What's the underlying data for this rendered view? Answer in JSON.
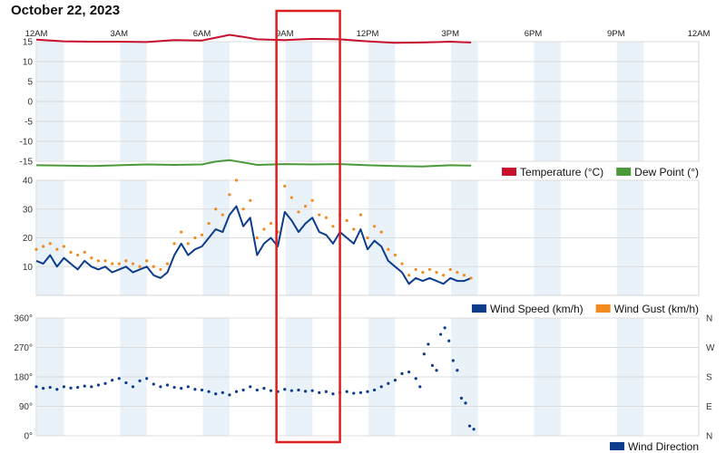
{
  "page": {
    "title": "October 22, 2023"
  },
  "highlight_color": "#dd1f1f",
  "time_axis": {
    "ticks": [
      "12AM",
      "3AM",
      "6AM",
      "9AM",
      "12PM",
      "3PM",
      "6PM",
      "9PM",
      "12AM"
    ]
  },
  "chart_data": [
    {
      "type": "line",
      "panel": "temperature-dewpoint",
      "x_unit": "hours since 12AM",
      "ylim": [
        -15,
        15
      ],
      "yticks": [
        "15",
        "10",
        "5",
        "0",
        "-5",
        "-10",
        "-15"
      ],
      "grid": true,
      "legend": "bottom-right",
      "series": [
        {
          "name": "Temperature (°C)",
          "color": "#c8102e",
          "x": [
            0,
            1,
            2,
            3,
            4,
            5,
            6,
            6.5,
            7,
            7.5,
            8,
            9,
            10,
            11,
            12,
            13,
            14,
            15,
            15.75
          ],
          "y": [
            15.5,
            15.1,
            15,
            15,
            14.9,
            15.4,
            15.3,
            16,
            16.7,
            16.2,
            15.6,
            15.4,
            15.7,
            15.6,
            15.1,
            14.7,
            14.8,
            15,
            14.8
          ]
        },
        {
          "name": "Dew Point (°)",
          "color": "#4a9a3a",
          "x": [
            0,
            1,
            2,
            3,
            4,
            5,
            6,
            6.5,
            7,
            7.5,
            8,
            9,
            10,
            11,
            12,
            13,
            14,
            15,
            15.75
          ],
          "y": [
            -16,
            -16.1,
            -16.2,
            -16,
            -15.8,
            -15.9,
            -15.8,
            -15.1,
            -14.7,
            -15.3,
            -15.9,
            -15.7,
            -15.8,
            -15.7,
            -16,
            -16.2,
            -16.3,
            -16,
            -16.1
          ]
        }
      ]
    },
    {
      "type": "line",
      "panel": "wind-speed-gust",
      "x_unit": "hours since 12AM",
      "ylim": [
        0,
        40
      ],
      "yticks": [
        "40",
        "30",
        "20",
        "10"
      ],
      "grid": true,
      "legend": "bottom-right",
      "series": [
        {
          "name": "Wind Speed (km/h)",
          "color": "#0d3c8c",
          "style": "line",
          "x": [
            0,
            0.25,
            0.5,
            0.75,
            1,
            1.25,
            1.5,
            1.75,
            2,
            2.25,
            2.5,
            2.75,
            3,
            3.25,
            3.5,
            3.75,
            4,
            4.25,
            4.5,
            4.75,
            5,
            5.25,
            5.5,
            5.75,
            6,
            6.25,
            6.5,
            6.75,
            7,
            7.25,
            7.5,
            7.75,
            8,
            8.25,
            8.5,
            8.75,
            9,
            9.25,
            9.5,
            9.75,
            10,
            10.25,
            10.5,
            10.75,
            11,
            11.25,
            11.5,
            11.75,
            12,
            12.25,
            12.5,
            12.75,
            13,
            13.25,
            13.5,
            13.75,
            14,
            14.25,
            14.5,
            14.75,
            15,
            15.25,
            15.5,
            15.75
          ],
          "y": [
            12,
            11,
            14,
            10,
            13,
            11,
            9,
            12,
            10,
            9,
            10,
            8,
            9,
            10,
            8,
            9,
            10,
            7,
            6,
            8,
            14,
            18,
            14,
            16,
            17,
            20,
            23,
            22,
            28,
            31,
            24,
            27,
            14,
            18,
            20,
            17,
            29,
            26,
            22,
            25,
            27,
            22,
            21,
            18,
            22,
            20,
            18,
            23,
            16,
            19,
            17,
            12,
            10,
            8,
            4,
            6,
            5,
            6,
            5,
            4,
            6,
            5,
            5,
            6
          ]
        },
        {
          "name": "Wind Gust (km/h)",
          "color": "#f28a1e",
          "style": "dots",
          "x": [
            0,
            0.25,
            0.5,
            0.75,
            1,
            1.25,
            1.5,
            1.75,
            2,
            2.25,
            2.5,
            2.75,
            3,
            3.25,
            3.5,
            3.75,
            4,
            4.25,
            4.5,
            4.75,
            5,
            5.25,
            5.5,
            5.75,
            6,
            6.25,
            6.5,
            6.75,
            7,
            7.25,
            7.5,
            7.75,
            8,
            8.25,
            8.5,
            8.75,
            9,
            9.25,
            9.5,
            9.75,
            10,
            10.25,
            10.5,
            10.75,
            11,
            11.25,
            11.5,
            11.75,
            12,
            12.25,
            12.5,
            12.75,
            13,
            13.25,
            13.5,
            13.75,
            14,
            14.25,
            14.5,
            14.75,
            15,
            15.25,
            15.5,
            15.75
          ],
          "y": [
            16,
            17,
            18,
            16,
            17,
            15,
            14,
            15,
            13,
            12,
            12,
            11,
            11,
            12,
            11,
            10,
            12,
            10,
            9,
            11,
            18,
            22,
            18,
            20,
            21,
            25,
            30,
            28,
            35,
            40,
            30,
            33,
            20,
            23,
            25,
            22,
            38,
            34,
            29,
            31,
            33,
            28,
            27,
            24,
            28,
            26,
            23,
            28,
            20,
            24,
            22,
            16,
            14,
            11,
            7,
            9,
            8,
            9,
            8,
            7,
            9,
            8,
            7,
            6
          ]
        }
      ]
    },
    {
      "type": "scatter",
      "panel": "wind-direction",
      "x_unit": "hours since 12AM",
      "ylim": [
        0,
        360
      ],
      "yticks": [
        "360°",
        "270°",
        "180°",
        "90°",
        "0°"
      ],
      "yticks_right": [
        "N",
        "W",
        "S",
        "E",
        "N"
      ],
      "grid": true,
      "legend": "bottom-right",
      "series": [
        {
          "name": "Wind Direction",
          "color": "#0d3c8c",
          "x": [
            0,
            0.25,
            0.5,
            0.75,
            1,
            1.25,
            1.5,
            1.75,
            2,
            2.25,
            2.5,
            2.75,
            3,
            3.25,
            3.5,
            3.75,
            4,
            4.25,
            4.5,
            4.75,
            5,
            5.25,
            5.5,
            5.75,
            6,
            6.25,
            6.5,
            6.75,
            7,
            7.25,
            7.5,
            7.75,
            8,
            8.25,
            8.5,
            8.75,
            9,
            9.25,
            9.5,
            9.75,
            10,
            10.25,
            10.5,
            10.75,
            11,
            11.25,
            11.5,
            11.75,
            12,
            12.25,
            12.5,
            12.75,
            13,
            13.25,
            13.5,
            13.75,
            13.9,
            14.05,
            14.2,
            14.35,
            14.5,
            14.65,
            14.8,
            14.95,
            15.1,
            15.25,
            15.4,
            15.55,
            15.7,
            15.85
          ],
          "y": [
            150,
            145,
            148,
            142,
            150,
            146,
            148,
            152,
            150,
            155,
            160,
            170,
            175,
            162,
            150,
            168,
            175,
            158,
            150,
            155,
            148,
            145,
            150,
            142,
            140,
            135,
            128,
            132,
            125,
            135,
            140,
            150,
            140,
            145,
            138,
            135,
            142,
            138,
            140,
            136,
            138,
            132,
            135,
            128,
            132,
            135,
            130,
            132,
            135,
            140,
            150,
            160,
            170,
            190,
            195,
            175,
            150,
            250,
            280,
            215,
            200,
            310,
            330,
            290,
            230,
            200,
            115,
            100,
            30,
            20
          ]
        }
      ]
    }
  ]
}
